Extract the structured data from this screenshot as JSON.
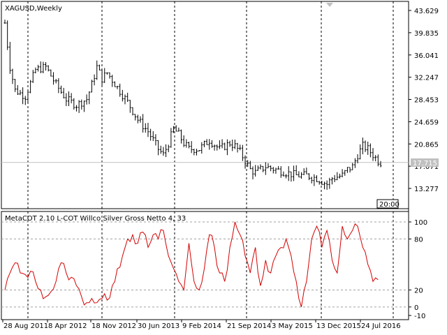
{
  "main_panel": {
    "title": "XAGUSD,Weekly",
    "price_axis_labels": [
      "43.629",
      "39.835",
      "36.041",
      "32.247",
      "28.453",
      "24.659",
      "20.865",
      "17.071",
      "13.277"
    ],
    "current_price": "17.715",
    "time_badge": "20:00"
  },
  "indicator_panel": {
    "title": "MetaCOT 2.10 L-COT Willco Silver Gross Netto 4, 33",
    "axis_labels": [
      "100",
      "80",
      "20",
      "0",
      "-10"
    ]
  },
  "time_axis_labels": [
    "28 Aug 2011",
    "8 Apr 2012",
    "18 Nov 2012",
    "30 Jun 2013",
    "9 Feb 2014",
    "21 Sep 2014",
    "3 May 2015",
    "13 Dec 2015",
    "24 Jul 2016"
  ],
  "colors": {
    "price_bars": "#000000",
    "indicator_line": "#d40000",
    "grid": "#000000",
    "level_lines": "#a0a0a0",
    "price_line": "#c0c0c0",
    "price_label_bg": "#c0c0c0"
  },
  "chart_data": [
    {
      "type": "bar",
      "title": "XAGUSD,Weekly",
      "ylim": [
        11.0,
        45.0
      ],
      "x": [
        "28 Aug 2011",
        "8 Apr 2012",
        "18 Nov 2012",
        "30 Jun 2013",
        "9 Feb 2014",
        "21 Sep 2014",
        "3 May 2015",
        "13 Dec 2015",
        "24 Jul 2016"
      ],
      "close_path": [
        [
          0,
          41.5
        ],
        [
          1,
          34.0
        ],
        [
          2,
          30.0
        ],
        [
          4,
          29.0
        ],
        [
          6,
          33.5
        ],
        [
          8,
          34.0
        ],
        [
          10,
          31.0
        ],
        [
          12,
          28.5
        ],
        [
          14,
          27.5
        ],
        [
          16,
          28.5
        ],
        [
          17,
          31.0
        ],
        [
          18,
          34.0
        ],
        [
          19,
          32.0
        ],
        [
          20,
          33.0
        ],
        [
          22,
          30.5
        ],
        [
          24,
          28.0
        ],
        [
          26,
          25.0
        ],
        [
          28,
          23.0
        ],
        [
          29,
          21.5
        ],
        [
          30,
          20.0
        ],
        [
          31,
          19.0
        ],
        [
          32,
          21.0
        ],
        [
          33,
          23.5
        ],
        [
          34,
          22.5
        ],
        [
          35,
          21.0
        ],
        [
          36,
          20.0
        ],
        [
          38,
          20.0
        ],
        [
          40,
          21.5
        ],
        [
          42,
          20.0
        ],
        [
          44,
          21.0
        ],
        [
          45,
          20.5
        ],
        [
          46,
          19.5
        ],
        [
          47,
          18.0
        ],
        [
          48,
          16.5
        ],
        [
          49,
          16.0
        ],
        [
          50,
          16.5
        ],
        [
          51,
          17.0
        ],
        [
          53,
          16.5
        ],
        [
          55,
          16.0
        ],
        [
          57,
          15.5
        ],
        [
          59,
          15.5
        ],
        [
          61,
          15.0
        ],
        [
          62,
          14.5
        ],
        [
          63,
          14.0
        ],
        [
          64,
          15.0
        ],
        [
          66,
          15.5
        ],
        [
          67,
          16.5
        ],
        [
          68,
          17.0
        ],
        [
          69,
          19.0
        ],
        [
          70,
          20.5
        ],
        [
          71,
          20.0
        ],
        [
          72,
          19.0
        ],
        [
          73,
          18.0
        ],
        [
          73.5,
          17.7
        ]
      ],
      "last_price": 17.715
    },
    {
      "type": "line",
      "title": "MetaCOT 2.10 L-COT Willco Silver Gross Netto 4, 33",
      "ylim": [
        -10,
        100
      ],
      "levels": [
        80,
        20,
        0
      ],
      "series": [
        {
          "values": [
            [
              0,
              20
            ],
            [
              1,
              40
            ],
            [
              2,
              52
            ],
            [
              3,
              40
            ],
            [
              4,
              38
            ],
            [
              5,
              42
            ],
            [
              6,
              30
            ],
            [
              7,
              20
            ],
            [
              8,
              12
            ],
            [
              9,
              18
            ],
            [
              10,
              30
            ],
            [
              11,
              52
            ],
            [
              12,
              40
            ],
            [
              13,
              35
            ],
            [
              14,
              25
            ],
            [
              15,
              12
            ],
            [
              16,
              5
            ],
            [
              17,
              10
            ],
            [
              18,
              5
            ],
            [
              19,
              10
            ],
            [
              20,
              8
            ],
            [
              21,
              25
            ],
            [
              22,
              45
            ],
            [
              23,
              60
            ],
            [
              24,
              80
            ],
            [
              25,
              85
            ],
            [
              26,
              75
            ],
            [
              27,
              88
            ],
            [
              28,
              70
            ],
            [
              29,
              85
            ],
            [
              30,
              80
            ],
            [
              31,
              90
            ],
            [
              32,
              60
            ],
            [
              33,
              45
            ],
            [
              34,
              30
            ],
            [
              35,
              20
            ],
            [
              36,
              75
            ],
            [
              37,
              30
            ],
            [
              38,
              20
            ],
            [
              39,
              45
            ],
            [
              40,
              85
            ],
            [
              41,
              70
            ],
            [
              42,
              40
            ],
            [
              43,
              30
            ],
            [
              44,
              70
            ],
            [
              45,
              100
            ],
            [
              46,
              85
            ],
            [
              47,
              60
            ],
            [
              48,
              40
            ],
            [
              49,
              70
            ],
            [
              50,
              25
            ],
            [
              51,
              55
            ],
            [
              52,
              40
            ],
            [
              53,
              60
            ],
            [
              54,
              70
            ],
            [
              55,
              80
            ],
            [
              56,
              60
            ],
            [
              57,
              30
            ],
            [
              58,
              0
            ],
            [
              59,
              30
            ],
            [
              60,
              80
            ],
            [
              61,
              95
            ],
            [
              62,
              70
            ],
            [
              63,
              90
            ],
            [
              64,
              55
            ],
            [
              65,
              40
            ],
            [
              66,
              95
            ],
            [
              67,
              80
            ],
            [
              68,
              90
            ],
            [
              69,
              95
            ],
            [
              70,
              70
            ],
            [
              71,
              50
            ],
            [
              72,
              30
            ],
            [
              73,
              32
            ]
          ]
        }
      ]
    }
  ]
}
